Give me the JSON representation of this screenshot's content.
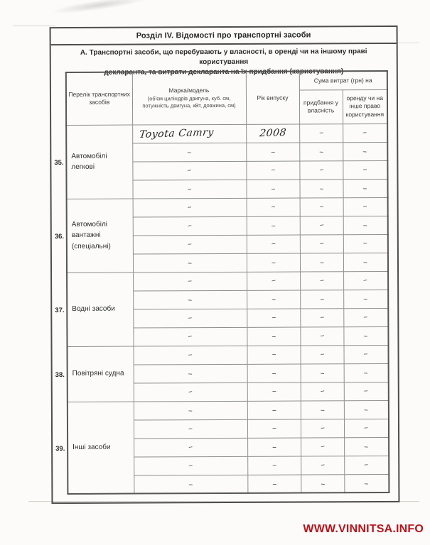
{
  "scan": {
    "title": "Розділ IV. Відомості про транспортні засоби",
    "subtitle_line1": "А. Транспортні засоби, що перебувають у власності, в оренді чи на іншому праві користування",
    "subtitle_line2": "декларанта, та витрати декларанта на їх придбання (користування)"
  },
  "table": {
    "col_headers": {
      "transport_list": "Перелік транспортних засобів",
      "make_model": "Марка/модель",
      "make_model_note": "(об'єм циліндрів двигуна, куб. см, потужність двигуна, кВт, довжина, см)",
      "year": "Рік випуску",
      "cost_group": "Сума витрат (грн) на",
      "cost_purchase": "придбання у власність",
      "cost_rent": "оренду чи на інше право користування"
    },
    "blocks": [
      {
        "num": "35.",
        "label": "Автомобілі легкові",
        "rows": [
          {
            "model": "Toyota Camry",
            "year": "2008",
            "purchase": "–",
            "rent": "–",
            "handwritten_entry": true
          },
          {
            "model": "–",
            "year": "–",
            "purchase": "–",
            "rent": "–"
          },
          {
            "model": "–",
            "year": "–",
            "purchase": "–",
            "rent": "–"
          },
          {
            "model": "–",
            "year": "–",
            "purchase": "–",
            "rent": "–"
          }
        ]
      },
      {
        "num": "36.",
        "label": "Автомобілі вантажні (спеціальні)",
        "rows": [
          {
            "model": "–",
            "year": "–",
            "purchase": "–",
            "rent": "–"
          },
          {
            "model": "–",
            "year": "–",
            "purchase": "–",
            "rent": "–"
          },
          {
            "model": "–",
            "year": "–",
            "purchase": "–",
            "rent": "–"
          },
          {
            "model": "–",
            "year": "–",
            "purchase": "–",
            "rent": "–"
          }
        ]
      },
      {
        "num": "37.",
        "label": "Водні засоби",
        "rows": [
          {
            "model": "–",
            "year": "–",
            "purchase": "–",
            "rent": "–"
          },
          {
            "model": "–",
            "year": "–",
            "purchase": "–",
            "rent": "–"
          },
          {
            "model": "–",
            "year": "–",
            "purchase": "–",
            "rent": "–"
          },
          {
            "model": "–",
            "year": "–",
            "purchase": "–",
            "rent": "–"
          }
        ]
      },
      {
        "num": "38.",
        "label": "Повітряні судна",
        "rows": [
          {
            "model": "–",
            "year": "–",
            "purchase": "–",
            "rent": "–"
          },
          {
            "model": "–",
            "year": "–",
            "purchase": "–",
            "rent": "–"
          },
          {
            "model": "–",
            "year": "–",
            "purchase": "–",
            "rent": "–"
          }
        ]
      },
      {
        "num": "39.",
        "label": "Інші засоби",
        "rows": [
          {
            "model": "–",
            "year": "–",
            "purchase": "–",
            "rent": "–"
          },
          {
            "model": "–",
            "year": "–",
            "purchase": "–",
            "rent": "–"
          },
          {
            "model": "–",
            "year": "–",
            "purchase": "–",
            "rent": "–"
          },
          {
            "model": "–",
            "year": "–",
            "purchase": "–",
            "rent": "–"
          },
          {
            "model": "–",
            "year": "–",
            "purchase": "–",
            "rent": "–"
          }
        ]
      }
    ],
    "dash_mark": "–"
  },
  "footer": {
    "watermark": "WWW.VINNITSA.INFO",
    "color": "#b5141c"
  }
}
